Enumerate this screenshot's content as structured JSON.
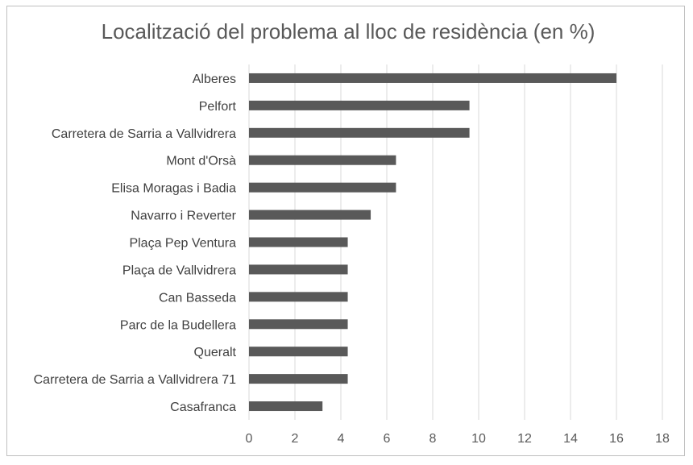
{
  "chart_data": {
    "type": "bar",
    "orientation": "horizontal",
    "title": "Localització del problema al lloc de residència (en %)",
    "xlabel": "",
    "ylabel": "",
    "categories": [
      "Alberes",
      "Pelfort",
      "Carretera de Sarria a Vallvidrera",
      "Mont d'Orsà",
      "Elisa Moragas i Badia",
      "Navarro i Reverter",
      "Plaça Pep Ventura",
      "Plaça de Vallvidrera",
      "Can Basseda",
      "Parc de la Budellera",
      "Queralt",
      "Carretera de Sarria a Vallvidrera 71",
      "Casafranca"
    ],
    "values": [
      16.0,
      9.6,
      9.6,
      6.4,
      6.4,
      5.3,
      4.3,
      4.3,
      4.3,
      4.3,
      4.3,
      4.3,
      3.2
    ],
    "xlim": [
      0,
      18
    ],
    "xticks": [
      "0",
      "2",
      "4",
      "6",
      "8",
      "10",
      "12",
      "14",
      "16",
      "18"
    ],
    "grid": true,
    "legend": "none",
    "bar_color": "#595959",
    "grid_color": "#d9d9d9"
  }
}
